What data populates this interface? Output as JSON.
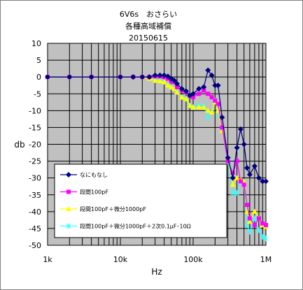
{
  "chart_data": {
    "type": "line",
    "title_lines": [
      "6V6s　おさらい",
      "各種高域補償",
      "20150615"
    ],
    "xlabel": "Hz",
    "ylabel": "db",
    "x_scale": "log",
    "xlim": [
      1000,
      1000000
    ],
    "ylim": [
      -50,
      10
    ],
    "x_ticks": [
      1000,
      10000,
      100000,
      1000000
    ],
    "x_tick_labels": [
      "1k",
      "10k",
      "100k",
      "1M"
    ],
    "y_ticks": [
      10,
      5,
      0,
      -5,
      -10,
      -15,
      -20,
      -25,
      -30,
      -35,
      -40,
      -45,
      -50
    ],
    "y_tick_labels": [
      "10",
      "5",
      "0",
      "-5",
      "-10",
      "-15",
      "-20",
      "-25",
      "-30",
      "-35",
      "-40",
      "-45",
      "-50"
    ],
    "grid": true,
    "plot_bg": "#c0c0c0",
    "legend_position": "lower-left",
    "series": [
      {
        "name": "なにもなし",
        "color": "#000080",
        "marker": "diamond",
        "x": [
          1000,
          2000,
          4000,
          10000,
          15000,
          20000,
          25000,
          30000,
          35000,
          40000,
          45000,
          50000,
          55000,
          60000,
          70000,
          80000,
          90000,
          100000,
          120000,
          140000,
          160000,
          180000,
          200000,
          220000,
          250000,
          300000,
          350000,
          400000,
          450000,
          500000,
          550000,
          600000,
          700000,
          800000,
          900000,
          1000000
        ],
        "y": [
          0,
          0,
          0,
          0,
          0,
          0,
          0,
          0.5,
          0.5,
          0.5,
          0.2,
          -0.5,
          -1,
          -2,
          -3.5,
          -4.2,
          -5.5,
          -5,
          -3.5,
          -3,
          2,
          0.5,
          -2.5,
          -2.5,
          -12,
          -24,
          -30,
          -21,
          -15.5,
          -20,
          -27,
          -29,
          -26.5,
          -30,
          -31,
          -31
        ]
      },
      {
        "name": "段間100pF",
        "color": "#ff00ff",
        "marker": "square",
        "x": [
          1000,
          2000,
          4000,
          10000,
          15000,
          20000,
          25000,
          30000,
          35000,
          40000,
          45000,
          50000,
          55000,
          60000,
          70000,
          80000,
          90000,
          100000,
          120000,
          140000,
          160000,
          180000,
          200000,
          220000,
          250000,
          300000,
          350000,
          400000,
          450000,
          500000,
          550000,
          600000,
          700000,
          800000,
          900000,
          1000000
        ],
        "y": [
          0,
          0,
          0,
          0,
          0,
          0,
          0,
          0.2,
          0.2,
          0,
          -0.5,
          -1.2,
          -1.5,
          -3,
          -4,
          -4.5,
          -5.5,
          -6,
          -5,
          -4,
          -5,
          -6,
          -7,
          -8,
          -15,
          -25,
          -28.5,
          -25,
          -31,
          -32,
          -38,
          -42,
          -44,
          -42,
          -43.5,
          -44
        ]
      },
      {
        "name": "段間100pF＋微分1000pF",
        "color": "#ffff00",
        "marker": "triangle",
        "x": [
          1000,
          2000,
          4000,
          10000,
          15000,
          20000,
          25000,
          30000,
          35000,
          40000,
          45000,
          50000,
          55000,
          60000,
          70000,
          80000,
          90000,
          100000,
          120000,
          140000,
          160000,
          180000,
          200000,
          220000,
          250000,
          300000,
          350000,
          400000,
          450000,
          500000,
          550000,
          600000,
          700000,
          800000,
          900000,
          1000000
        ],
        "y": [
          0,
          0,
          0,
          0,
          0,
          0,
          -0.5,
          -1,
          -1.2,
          -1.5,
          -2.5,
          -3,
          -3.5,
          -4.5,
          -6,
          -6.5,
          -8.5,
          -9,
          -9,
          -9,
          -10,
          -10.5,
          -7.5,
          -10,
          -16,
          -24,
          -32,
          -30,
          -30.5,
          -31,
          -40,
          -43,
          -40,
          -42,
          -44,
          -44.5
        ]
      },
      {
        "name": "段間100pF＋微分1000pF＋2次0.1μF･10Ω",
        "color": "#33ffff",
        "marker": "asterisk",
        "x": [
          1000,
          2000,
          4000,
          10000,
          15000,
          20000,
          25000,
          30000,
          35000,
          40000,
          45000,
          50000,
          55000,
          60000,
          70000,
          80000,
          90000,
          100000,
          120000,
          140000,
          160000,
          180000,
          200000,
          220000,
          250000,
          300000,
          350000,
          400000,
          450000,
          500000,
          550000,
          600000,
          700000,
          800000,
          900000,
          1000000
        ],
        "y": [
          0,
          0,
          0,
          0,
          0,
          0,
          -0.5,
          -1,
          -1.2,
          -1.5,
          -2.5,
          -3,
          -3.5,
          -4.5,
          -6,
          -6.5,
          -8.5,
          -9,
          -8.5,
          -8.5,
          -12,
          -10.5,
          -7,
          -11,
          -15.5,
          -25,
          -34.5,
          -34.5,
          -31,
          -31.5,
          -44,
          -46,
          -42,
          -45.5,
          -47.5,
          -48
        ]
      }
    ]
  }
}
